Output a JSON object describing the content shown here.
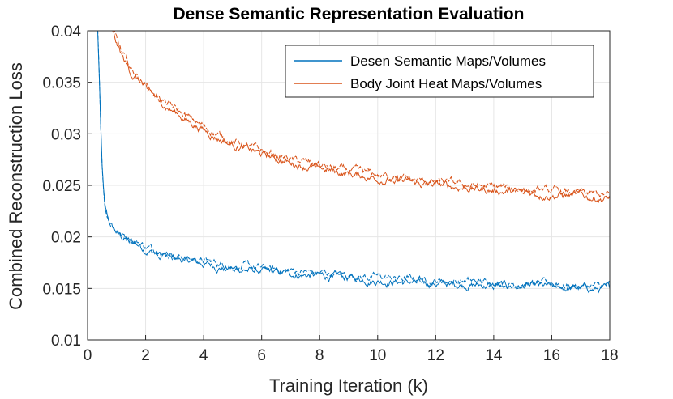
{
  "chart_data": {
    "type": "line",
    "title": "Dense Semantic Representation Evaluation",
    "xlabel": "Training Iteration (k)",
    "ylabel": "Combined Reconstruction Loss",
    "xlim": [
      0,
      18
    ],
    "ylim": [
      0.01,
      0.04
    ],
    "xticks": [
      0,
      2,
      4,
      6,
      8,
      10,
      12,
      14,
      16,
      18
    ],
    "xtick_labels": [
      "0",
      "2",
      "4",
      "6",
      "8",
      "10",
      "12",
      "14",
      "16",
      "18"
    ],
    "yticks": [
      0.01,
      0.015,
      0.02,
      0.025,
      0.03,
      0.035,
      0.04
    ],
    "ytick_labels": [
      "0.01",
      "0.015",
      "0.02",
      "0.025",
      "0.03",
      "0.035",
      "0.04"
    ],
    "grid": true,
    "legend_position": "top-right",
    "series": [
      {
        "name": "Desen Semantic Maps/Volumes",
        "color": "#0072BD",
        "x": [
          0.35,
          0.4,
          0.45,
          0.5,
          0.55,
          0.6,
          0.7,
          0.8,
          0.9,
          1.0,
          1.2,
          1.5,
          1.8,
          2.0,
          2.5,
          3.0,
          3.5,
          4.0,
          4.5,
          5.0,
          5.5,
          6.0,
          6.5,
          7.0,
          7.5,
          8.0,
          8.5,
          9.0,
          9.5,
          10.0,
          10.5,
          11.0,
          11.5,
          12.0,
          12.5,
          13.0,
          13.5,
          14.0,
          14.5,
          15.0,
          15.5,
          16.0,
          16.5,
          17.0,
          17.5,
          18.0
        ],
        "values": [
          0.04,
          0.036,
          0.031,
          0.027,
          0.0245,
          0.0228,
          0.0218,
          0.0212,
          0.0208,
          0.0205,
          0.02,
          0.0196,
          0.0193,
          0.0189,
          0.0184,
          0.018,
          0.0177,
          0.0175,
          0.0172,
          0.017,
          0.0169,
          0.0167,
          0.0166,
          0.0165,
          0.0164,
          0.0163,
          0.0162,
          0.0161,
          0.016,
          0.0159,
          0.0158,
          0.0157,
          0.0156,
          0.0156,
          0.0155,
          0.0155,
          0.0154,
          0.0154,
          0.0153,
          0.0153,
          0.0152,
          0.0152,
          0.0151,
          0.0151,
          0.015,
          0.015
        ]
      },
      {
        "name": "Body Joint Heat Maps/Volumes",
        "color": "#D95319",
        "x": [
          0.85,
          1.0,
          1.2,
          1.5,
          1.8,
          2.0,
          2.5,
          3.0,
          3.5,
          4.0,
          4.5,
          5.0,
          5.5,
          6.0,
          6.5,
          7.0,
          7.5,
          8.0,
          8.5,
          9.0,
          9.5,
          10.0,
          10.5,
          11.0,
          11.5,
          12.0,
          12.5,
          13.0,
          13.5,
          14.0,
          14.5,
          15.0,
          15.5,
          16.0,
          16.5,
          17.0,
          17.5,
          18.0
        ],
        "values": [
          0.04,
          0.0388,
          0.0375,
          0.036,
          0.0352,
          0.0345,
          0.0332,
          0.0322,
          0.0313,
          0.0305,
          0.0297,
          0.0291,
          0.0286,
          0.0281,
          0.0277,
          0.0273,
          0.027,
          0.0267,
          0.0264,
          0.0262,
          0.026,
          0.0258,
          0.0256,
          0.0254,
          0.0252,
          0.0251,
          0.025,
          0.0249,
          0.0247,
          0.0246,
          0.0245,
          0.0244,
          0.0243,
          0.0242,
          0.0241,
          0.024,
          0.0239,
          0.0238
        ]
      }
    ]
  }
}
